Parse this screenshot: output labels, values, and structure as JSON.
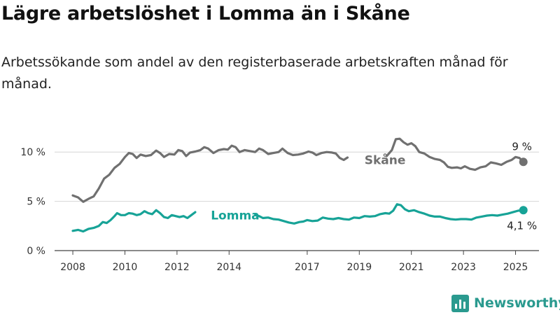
{
  "chart_data": {
    "type": "line",
    "title": "Lägre arbetslöshet i Lomma än i Skåne",
    "subtitle": "Arbetssökande som andel av den registerbaserade arbetskraften månad för månad.",
    "xlabel": "",
    "ylabel": "",
    "xlim": [
      2007.3,
      2025.9
    ],
    "ylim": [
      0,
      13
    ],
    "x_ticks": [
      {
        "value": 2008,
        "label": "2008"
      },
      {
        "value": 2010,
        "label": "2010"
      },
      {
        "value": 2012,
        "label": "2012"
      },
      {
        "value": 2014,
        "label": "2014"
      },
      {
        "value": 2017,
        "label": "2017"
      },
      {
        "value": 2019,
        "label": "2019"
      },
      {
        "value": 2021,
        "label": "2021"
      },
      {
        "value": 2023,
        "label": "2023"
      },
      {
        "value": 2025,
        "label": "2025"
      }
    ],
    "y_ticks": [
      {
        "value": 0,
        "label": "0 %"
      },
      {
        "value": 5,
        "label": "5 %"
      },
      {
        "value": 10,
        "label": "10 %"
      }
    ],
    "grid": true,
    "legend": "inline labels",
    "series": [
      {
        "name": "Skåne",
        "color": "#707070",
        "label_at": {
          "x": 2019.2,
          "y": 9.2
        },
        "end_label": "9 %",
        "points": [
          [
            2008.0,
            5.6
          ],
          [
            2008.2,
            5.4
          ],
          [
            2008.4,
            4.95
          ],
          [
            2008.6,
            5.25
          ],
          [
            2008.8,
            5.5
          ],
          [
            2009.0,
            6.3
          ],
          [
            2009.2,
            7.3
          ],
          [
            2009.4,
            7.7
          ],
          [
            2009.6,
            8.4
          ],
          [
            2009.8,
            8.8
          ],
          [
            2010.0,
            9.5
          ],
          [
            2010.15,
            9.9
          ],
          [
            2010.3,
            9.8
          ],
          [
            2010.45,
            9.4
          ],
          [
            2010.6,
            9.75
          ],
          [
            2010.8,
            9.6
          ],
          [
            2011.0,
            9.7
          ],
          [
            2011.2,
            10.15
          ],
          [
            2011.35,
            9.9
          ],
          [
            2011.5,
            9.5
          ],
          [
            2011.7,
            9.8
          ],
          [
            2011.9,
            9.75
          ],
          [
            2012.05,
            10.2
          ],
          [
            2012.2,
            10.1
          ],
          [
            2012.35,
            9.6
          ],
          [
            2012.5,
            9.95
          ],
          [
            2012.7,
            10.05
          ],
          [
            2012.9,
            10.2
          ],
          [
            2013.05,
            10.5
          ],
          [
            2013.2,
            10.35
          ],
          [
            2013.4,
            9.9
          ],
          [
            2013.6,
            10.2
          ],
          [
            2013.8,
            10.3
          ],
          [
            2013.95,
            10.25
          ],
          [
            2014.1,
            10.65
          ],
          [
            2014.25,
            10.5
          ],
          [
            2014.4,
            10.0
          ],
          [
            2014.6,
            10.2
          ],
          [
            2014.8,
            10.1
          ],
          [
            2015.0,
            10.0
          ],
          [
            2015.15,
            10.35
          ],
          [
            2015.3,
            10.2
          ],
          [
            2015.5,
            9.8
          ],
          [
            2015.7,
            9.9
          ],
          [
            2015.9,
            10.0
          ],
          [
            2016.05,
            10.35
          ],
          [
            2016.25,
            9.9
          ],
          [
            2016.45,
            9.7
          ],
          [
            2016.65,
            9.75
          ],
          [
            2016.85,
            9.85
          ],
          [
            2017.05,
            10.05
          ],
          [
            2017.2,
            9.95
          ],
          [
            2017.35,
            9.7
          ],
          [
            2017.55,
            9.9
          ],
          [
            2017.75,
            10.0
          ],
          [
            2017.95,
            9.95
          ],
          [
            2018.1,
            9.85
          ],
          [
            2018.25,
            9.4
          ],
          [
            2018.4,
            9.2
          ],
          [
            2018.55,
            9.45
          ]
        ],
        "points_after_gap": [
          [
            2020.05,
            9.6
          ],
          [
            2020.25,
            10.2
          ],
          [
            2020.4,
            11.3
          ],
          [
            2020.55,
            11.35
          ],
          [
            2020.7,
            11.0
          ],
          [
            2020.85,
            10.75
          ],
          [
            2021.0,
            10.9
          ],
          [
            2021.15,
            10.6
          ],
          [
            2021.3,
            10.0
          ],
          [
            2021.5,
            9.85
          ],
          [
            2021.7,
            9.5
          ],
          [
            2021.9,
            9.3
          ],
          [
            2022.1,
            9.2
          ],
          [
            2022.25,
            8.95
          ],
          [
            2022.4,
            8.5
          ],
          [
            2022.55,
            8.4
          ],
          [
            2022.75,
            8.45
          ],
          [
            2022.9,
            8.35
          ],
          [
            2023.05,
            8.55
          ],
          [
            2023.25,
            8.3
          ],
          [
            2023.45,
            8.2
          ],
          [
            2023.65,
            8.45
          ],
          [
            2023.85,
            8.55
          ],
          [
            2024.05,
            8.95
          ],
          [
            2024.25,
            8.85
          ],
          [
            2024.45,
            8.7
          ],
          [
            2024.65,
            9.0
          ],
          [
            2024.85,
            9.2
          ],
          [
            2025.0,
            9.5
          ],
          [
            2025.15,
            9.4
          ],
          [
            2025.3,
            9.0
          ]
        ]
      },
      {
        "name": "Lomma",
        "color": "#17a397",
        "label_at": {
          "x": 2013.3,
          "y": 3.6
        },
        "end_label": "4,1 %",
        "points": [
          [
            2008.0,
            2.0
          ],
          [
            2008.2,
            2.1
          ],
          [
            2008.4,
            1.95
          ],
          [
            2008.6,
            2.2
          ],
          [
            2008.8,
            2.3
          ],
          [
            2009.0,
            2.5
          ],
          [
            2009.15,
            2.9
          ],
          [
            2009.3,
            2.8
          ],
          [
            2009.45,
            3.1
          ],
          [
            2009.6,
            3.5
          ],
          [
            2009.7,
            3.8
          ],
          [
            2009.85,
            3.6
          ],
          [
            2010.0,
            3.6
          ],
          [
            2010.15,
            3.8
          ],
          [
            2010.3,
            3.75
          ],
          [
            2010.45,
            3.6
          ],
          [
            2010.6,
            3.7
          ],
          [
            2010.75,
            4.0
          ],
          [
            2010.9,
            3.8
          ],
          [
            2011.05,
            3.7
          ],
          [
            2011.2,
            4.1
          ],
          [
            2011.35,
            3.8
          ],
          [
            2011.5,
            3.4
          ],
          [
            2011.65,
            3.3
          ],
          [
            2011.8,
            3.6
          ],
          [
            2011.95,
            3.5
          ],
          [
            2012.1,
            3.4
          ],
          [
            2012.25,
            3.5
          ],
          [
            2012.4,
            3.3
          ],
          [
            2012.55,
            3.6
          ],
          [
            2012.7,
            3.9
          ]
        ],
        "points_after_gap": [
          [
            2015.0,
            3.6
          ],
          [
            2015.15,
            3.5
          ],
          [
            2015.3,
            3.3
          ],
          [
            2015.5,
            3.35
          ],
          [
            2015.7,
            3.2
          ],
          [
            2015.9,
            3.15
          ],
          [
            2016.1,
            3.0
          ],
          [
            2016.3,
            2.85
          ],
          [
            2016.5,
            2.75
          ],
          [
            2016.7,
            2.9
          ],
          [
            2016.85,
            2.95
          ],
          [
            2017.0,
            3.1
          ],
          [
            2017.2,
            3.0
          ],
          [
            2017.4,
            3.05
          ],
          [
            2017.6,
            3.35
          ],
          [
            2017.8,
            3.25
          ],
          [
            2018.0,
            3.2
          ],
          [
            2018.2,
            3.3
          ],
          [
            2018.4,
            3.2
          ],
          [
            2018.6,
            3.15
          ],
          [
            2018.8,
            3.35
          ],
          [
            2019.0,
            3.3
          ],
          [
            2019.2,
            3.5
          ],
          [
            2019.4,
            3.45
          ],
          [
            2019.6,
            3.5
          ],
          [
            2019.8,
            3.7
          ],
          [
            2020.0,
            3.8
          ],
          [
            2020.15,
            3.75
          ],
          [
            2020.3,
            4.05
          ],
          [
            2020.45,
            4.7
          ],
          [
            2020.6,
            4.6
          ],
          [
            2020.75,
            4.2
          ],
          [
            2020.9,
            4.0
          ],
          [
            2021.1,
            4.1
          ],
          [
            2021.3,
            3.9
          ],
          [
            2021.5,
            3.75
          ],
          [
            2021.7,
            3.55
          ],
          [
            2021.9,
            3.45
          ],
          [
            2022.1,
            3.45
          ],
          [
            2022.3,
            3.3
          ],
          [
            2022.5,
            3.2
          ],
          [
            2022.7,
            3.15
          ],
          [
            2022.9,
            3.2
          ],
          [
            2023.1,
            3.2
          ],
          [
            2023.3,
            3.15
          ],
          [
            2023.5,
            3.35
          ],
          [
            2023.7,
            3.45
          ],
          [
            2023.9,
            3.55
          ],
          [
            2024.1,
            3.6
          ],
          [
            2024.3,
            3.55
          ],
          [
            2024.5,
            3.65
          ],
          [
            2024.7,
            3.75
          ],
          [
            2024.9,
            3.9
          ],
          [
            2025.1,
            4.05
          ],
          [
            2025.3,
            4.1
          ]
        ]
      }
    ]
  },
  "brand": {
    "name": "Newsworthy",
    "color": "#2a9a8f"
  }
}
